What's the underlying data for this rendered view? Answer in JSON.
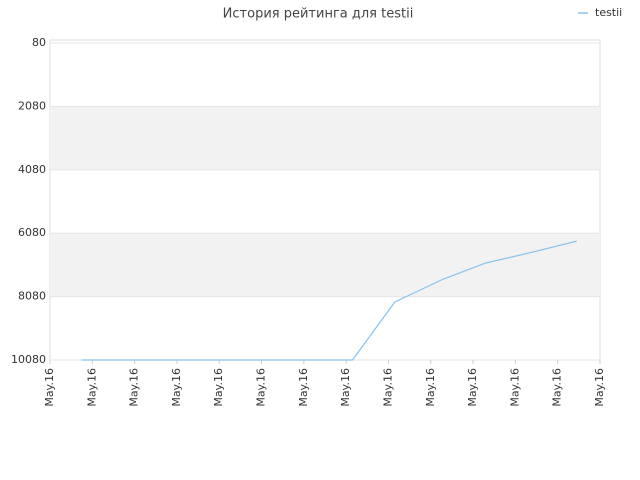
{
  "chart_data": {
    "type": "line",
    "title": "История рейтинга для testii",
    "x": [
      0.75,
      7.15,
      8.15,
      9.3,
      10.3,
      11.4,
      12.45
    ],
    "series": [
      {
        "name": "testii",
        "color": "#88c4f0",
        "values": [
          10080,
          10080,
          8250,
          7525,
          7020,
          6680,
          6330
        ]
      }
    ],
    "xlim": [
      0,
      13
    ],
    "xticks": [
      {
        "value": 0,
        "label": "May.16"
      },
      {
        "value": 1,
        "label": "May.16"
      },
      {
        "value": 2,
        "label": "May.16"
      },
      {
        "value": 3,
        "label": "May.16"
      },
      {
        "value": 4,
        "label": "May.16"
      },
      {
        "value": 5,
        "label": "May.16"
      },
      {
        "value": 6,
        "label": "May.16"
      },
      {
        "value": 7,
        "label": "May.16"
      },
      {
        "value": 8,
        "label": "May.16"
      },
      {
        "value": 9,
        "label": "May.16"
      },
      {
        "value": 10,
        "label": "May.16"
      },
      {
        "value": 11,
        "label": "May.16"
      },
      {
        "value": 12,
        "label": "May.16"
      },
      {
        "value": 13,
        "label": "May.16"
      }
    ],
    "ylim": [
      80,
      10080
    ],
    "y_inverted": true,
    "yticks": [
      80,
      2080,
      4080,
      6080,
      8080,
      10080
    ],
    "grid": true,
    "band_color": "#f2f2f2",
    "legend": "top-right"
  }
}
